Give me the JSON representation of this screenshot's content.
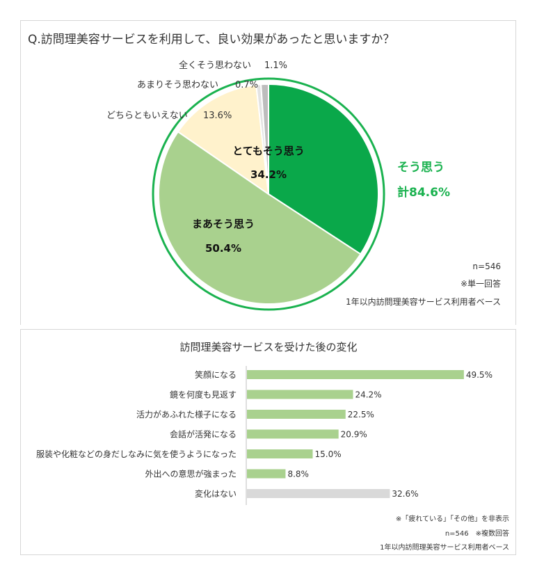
{
  "chart_data": [
    {
      "type": "pie",
      "title": "Q.訪問理美容サービスを利用して、良い効果があったと思いますか？",
      "slices": [
        {
          "label": "とてもそう思う",
          "value": 34.2,
          "value_label": "34.2%",
          "color": "#0aa84a"
        },
        {
          "label": "まあそう思う",
          "value": 50.4,
          "value_label": "50.4%",
          "color": "#a9d18e"
        },
        {
          "label": "どちらともいえない",
          "value": 13.6,
          "value_label": "13.6%",
          "color": "#fff2cc"
        },
        {
          "label": "あまりそう思わない",
          "value": 0.7,
          "value_label": "0.7%",
          "color": "#e3e3e3"
        },
        {
          "label": "全くそう思わない",
          "value": 1.1,
          "value_label": "1.1%",
          "color": "#bdbdbd"
        }
      ],
      "total_label": "そう思う",
      "total_value": "計84.6%",
      "total_color": "#1ab24f",
      "notes": [
        "n=546",
        "※単一回答",
        "1年以内訪問理美容サービス利用者ベース"
      ]
    },
    {
      "type": "bar",
      "orientation": "horizontal",
      "title": "訪問理美容サービスを受けた後の変化",
      "categories": [
        "笑顔になる",
        "鏡を何度も見返す",
        "活力があふれた様子になる",
        "会話が活発になる",
        "服装や化粧などの身だしなみに気を使うようになった",
        "外出への意思が強まった",
        "変化はない"
      ],
      "values": [
        49.5,
        24.2,
        22.5,
        20.9,
        15.0,
        8.8,
        32.6
      ],
      "value_labels": [
        "49.5%",
        "24.2%",
        "22.5%",
        "20.9%",
        "15.0%",
        "8.8%",
        "32.6%"
      ],
      "colors": [
        "#a9d18e",
        "#a9d18e",
        "#a9d18e",
        "#a9d18e",
        "#a9d18e",
        "#a9d18e",
        "#d9d9d9"
      ],
      "notes": [
        "※「疲れている」「その他」を非表示",
        "n=546　※複数回答",
        "1年以内訪問理美容サービス利用者ベース"
      ]
    }
  ]
}
